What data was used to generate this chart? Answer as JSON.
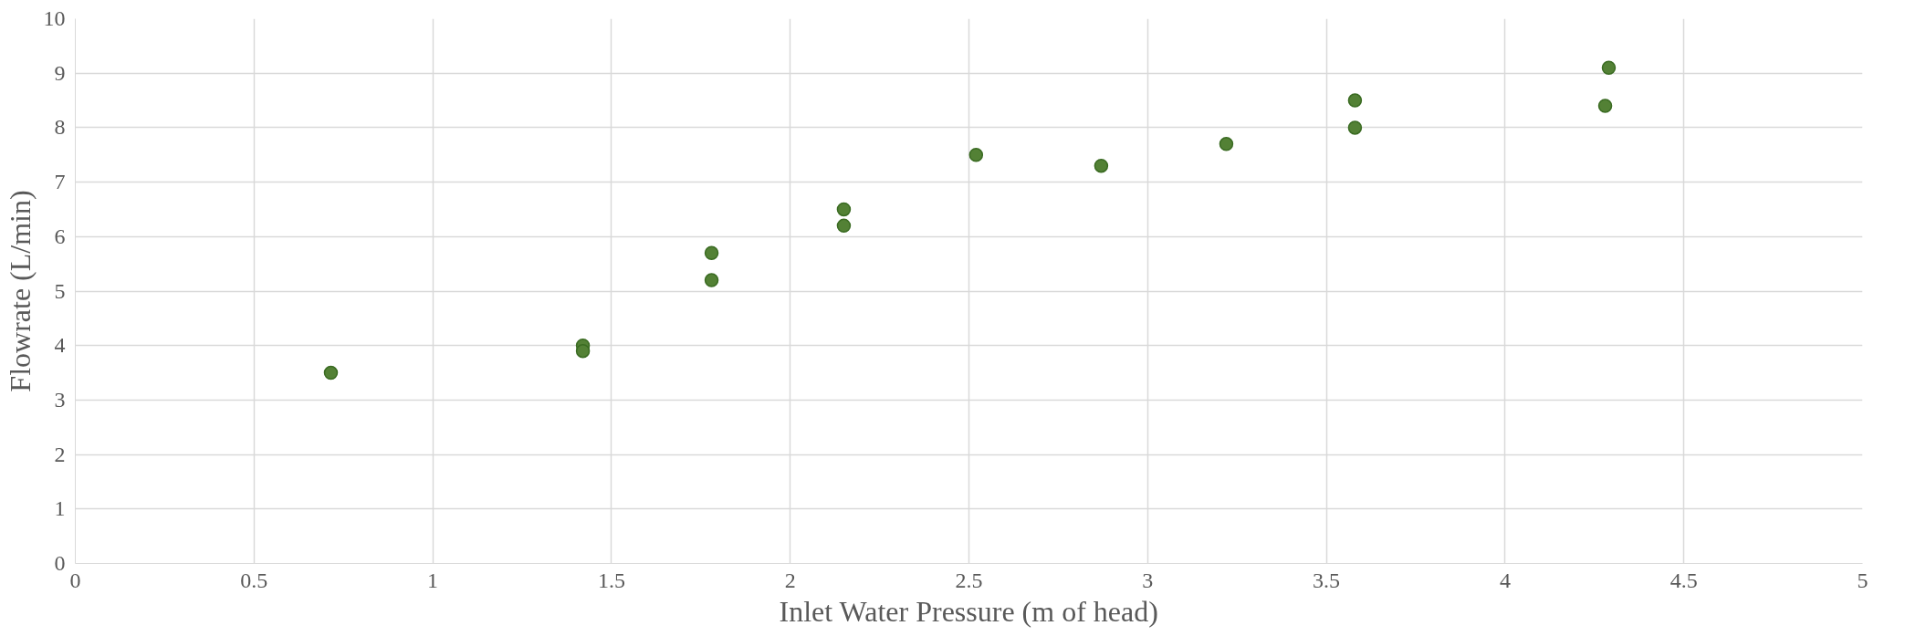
{
  "chart_data": {
    "type": "scatter",
    "xlabel": "Inlet Water Pressure (m of head)",
    "ylabel": "Flowrate (L/min)",
    "x": [
      0.715,
      1.42,
      1.42,
      1.78,
      1.78,
      2.15,
      2.15,
      2.52,
      2.87,
      3.22,
      3.58,
      3.58,
      4.29,
      4.28
    ],
    "series": [
      {
        "color": "#538135",
        "values": [
          3.5,
          4.0,
          3.9,
          5.7,
          5.2,
          6.5,
          6.2,
          7.5,
          7.3,
          7.7,
          8.5,
          8.0,
          9.1,
          8.4
        ]
      }
    ],
    "xlim": [
      0,
      5
    ],
    "ylim": [
      0,
      10
    ],
    "xticks": [
      0,
      0.5,
      1,
      1.5,
      2,
      2.5,
      3,
      3.5,
      4,
      4.5,
      5
    ],
    "yticks": [
      0,
      1,
      2,
      3,
      4,
      5,
      6,
      7,
      8,
      9,
      10
    ],
    "grid": true,
    "marker": "circle"
  }
}
